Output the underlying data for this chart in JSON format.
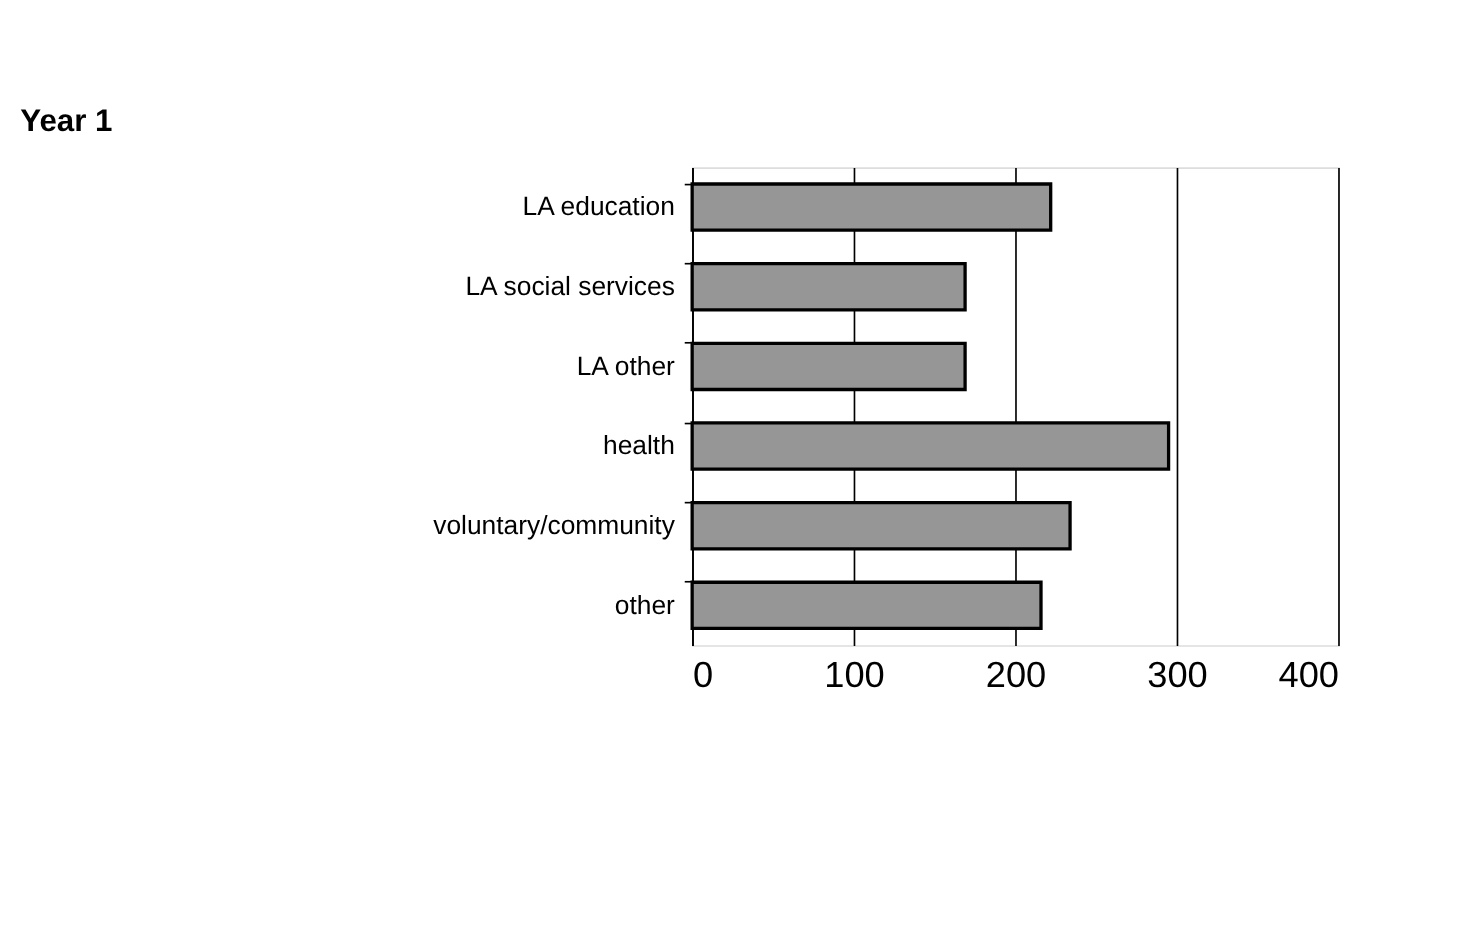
{
  "chart_data": {
    "type": "bar",
    "title": "Year 1",
    "orientation": "horizontal",
    "categories": [
      "LA education",
      "LA social services",
      "LA other",
      "health",
      "voluntary/community",
      "other"
    ],
    "values": [
      222,
      169,
      169,
      295,
      234,
      216
    ],
    "color": "#969696",
    "xlim": [
      0,
      400
    ],
    "xticks": [
      0,
      100,
      200,
      300,
      400
    ],
    "grid": "x"
  }
}
